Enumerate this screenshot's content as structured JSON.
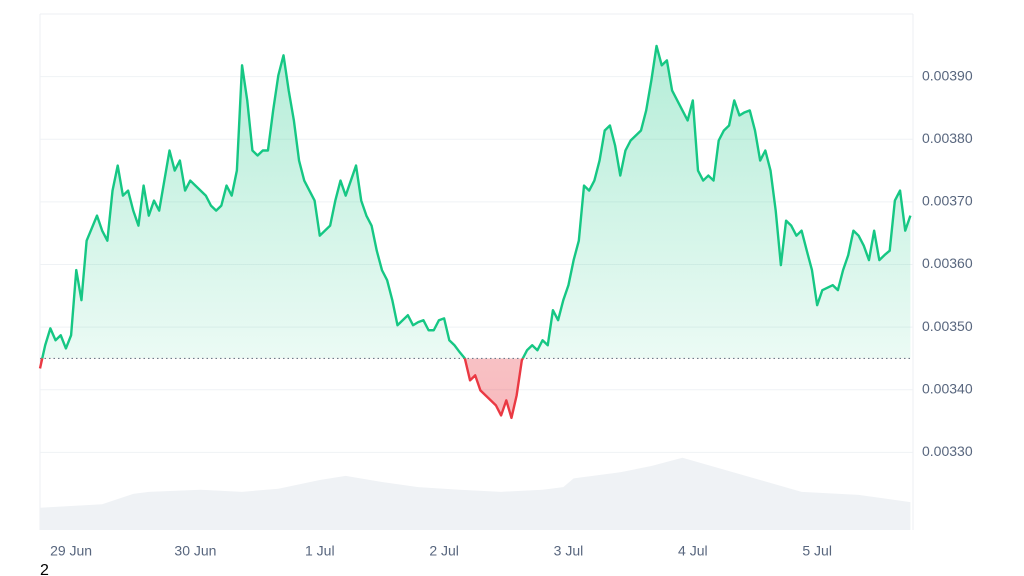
{
  "chart_data": {
    "type": "line",
    "x": [
      -6,
      -5,
      -4,
      -3,
      -2,
      -1,
      0,
      1,
      2,
      3,
      4,
      5,
      6,
      7,
      8,
      9,
      10,
      11,
      12,
      13,
      14,
      15,
      16,
      17,
      18,
      19,
      20,
      21,
      22,
      23,
      24,
      25,
      26,
      27,
      28,
      29,
      30,
      31,
      32,
      33,
      34,
      35,
      36,
      37,
      38,
      39,
      40,
      41,
      42,
      43,
      44,
      45,
      46,
      47,
      48,
      49,
      50,
      51,
      52,
      53,
      54,
      55,
      56,
      57,
      58,
      59,
      60,
      61,
      62,
      63,
      64,
      65,
      66,
      67,
      68,
      69,
      70,
      71,
      72,
      73,
      74,
      75,
      76,
      77,
      78,
      79,
      80,
      81,
      82,
      83,
      84,
      85,
      86,
      87,
      88,
      89,
      90,
      91,
      92,
      93,
      94,
      95,
      96,
      97,
      98,
      99,
      100,
      101,
      102,
      103,
      104,
      105,
      106,
      107,
      108,
      109,
      110,
      111,
      112,
      113,
      114,
      115,
      116,
      117,
      118,
      119,
      120,
      121,
      122,
      123,
      124,
      125,
      126,
      127,
      128,
      129,
      130,
      131,
      132,
      133,
      134,
      135,
      136,
      137,
      138,
      139,
      140,
      141,
      142,
      143,
      144,
      145,
      146,
      147,
      148,
      149,
      150,
      151,
      152,
      153,
      154,
      155,
      156,
      157,
      158,
      159,
      160,
      161,
      162
    ],
    "values": [
      0.003434,
      0.003471,
      0.003498,
      0.003479,
      0.003487,
      0.003466,
      0.003487,
      0.003591,
      0.003543,
      0.003638,
      0.003658,
      0.003678,
      0.003654,
      0.003638,
      0.003718,
      0.003758,
      0.00371,
      0.003718,
      0.003686,
      0.003662,
      0.003726,
      0.003678,
      0.003702,
      0.003686,
      0.003734,
      0.003782,
      0.00375,
      0.003766,
      0.003718,
      0.003734,
      0.003726,
      0.003718,
      0.00371,
      0.003694,
      0.003686,
      0.003694,
      0.003726,
      0.00371,
      0.00375,
      0.003918,
      0.003862,
      0.003782,
      0.003774,
      0.003782,
      0.003782,
      0.003846,
      0.003902,
      0.003934,
      0.003878,
      0.00383,
      0.003766,
      0.003734,
      0.003718,
      0.003702,
      0.003646,
      0.003654,
      0.003662,
      0.003702,
      0.003734,
      0.00371,
      0.003734,
      0.003758,
      0.003702,
      0.003678,
      0.003662,
      0.003622,
      0.003591,
      0.003575,
      0.003543,
      0.003503,
      0.003511,
      0.003519,
      0.003503,
      0.003508,
      0.003511,
      0.003495,
      0.003495,
      0.003511,
      0.003514,
      0.003479,
      0.003471,
      0.00346,
      0.00345,
      0.003415,
      0.003423,
      0.003399,
      0.003391,
      0.003383,
      0.003375,
      0.003359,
      0.003383,
      0.003355,
      0.003391,
      0.003447,
      0.003463,
      0.003471,
      0.003463,
      0.003479,
      0.003471,
      0.003527,
      0.003511,
      0.003543,
      0.003567,
      0.003607,
      0.003638,
      0.003726,
      0.003718,
      0.003734,
      0.003766,
      0.003814,
      0.003822,
      0.00379,
      0.003742,
      0.003782,
      0.003798,
      0.003806,
      0.003814,
      0.003846,
      0.003894,
      0.003949,
      0.003918,
      0.003926,
      0.003878,
      0.003862,
      0.003846,
      0.00383,
      0.003862,
      0.00375,
      0.003734,
      0.003742,
      0.003734,
      0.003798,
      0.003814,
      0.003822,
      0.003862,
      0.003838,
      0.003843,
      0.003846,
      0.003814,
      0.003766,
      0.003782,
      0.00375,
      0.003686,
      0.003599,
      0.00367,
      0.003662,
      0.003646,
      0.003654,
      0.003622,
      0.003591,
      0.003535,
      0.003559,
      0.003563,
      0.003567,
      0.003559,
      0.003591,
      0.003615,
      0.003654,
      0.003646,
      0.00363,
      0.003607,
      0.003654,
      0.003607,
      0.003615,
      0.003622,
      0.003702,
      0.003718,
      0.003654,
      0.003678
    ],
    "color": "#16c784",
    "below_color": "#ea3943",
    "baseline": 0.00345,
    "xlim": [
      -6,
      162.5
    ],
    "xticks": [
      {
        "value": 0,
        "label": "29 Jun"
      },
      {
        "value": 24,
        "label": "30 Jun"
      },
      {
        "value": 48,
        "label": "1 Jul"
      },
      {
        "value": 72,
        "label": "2 Jul"
      },
      {
        "value": 96,
        "label": "3 Jul"
      },
      {
        "value": 120,
        "label": "4 Jul"
      },
      {
        "value": 144,
        "label": "5 Jul"
      }
    ],
    "ylim": [
      0.003176,
      0.004
    ],
    "yticks": [
      {
        "value": 0.0033,
        "label": "0.00330"
      },
      {
        "value": 0.0034,
        "label": "0.00340"
      },
      {
        "value": 0.0035,
        "label": "0.00350"
      },
      {
        "value": 0.0036,
        "label": "0.00360"
      },
      {
        "value": 0.0037,
        "label": "0.00370"
      },
      {
        "value": 0.0038,
        "label": "0.00380"
      },
      {
        "value": 0.0039,
        "label": "0.00390"
      }
    ],
    "grid": true,
    "volume": {
      "axis": "y2",
      "color": "#eff2f5",
      "x": [
        -6,
        6,
        12,
        15,
        25,
        33,
        40,
        48,
        53,
        60,
        67,
        75,
        83,
        91,
        95,
        97,
        106,
        112,
        118,
        125,
        133,
        141,
        152,
        162
      ],
      "values": [
        4.3,
        5,
        7,
        7.4,
        7.8,
        7.4,
        8,
        9.7,
        10.5,
        9.3,
        8.3,
        7.8,
        7.4,
        7.8,
        8.3,
        10,
        11.2,
        12.4,
        14,
        12,
        9.7,
        7.4,
        6.8,
        5.4
      ]
    },
    "y2lim": [
      0,
      100
    ],
    "footnote": "2"
  }
}
